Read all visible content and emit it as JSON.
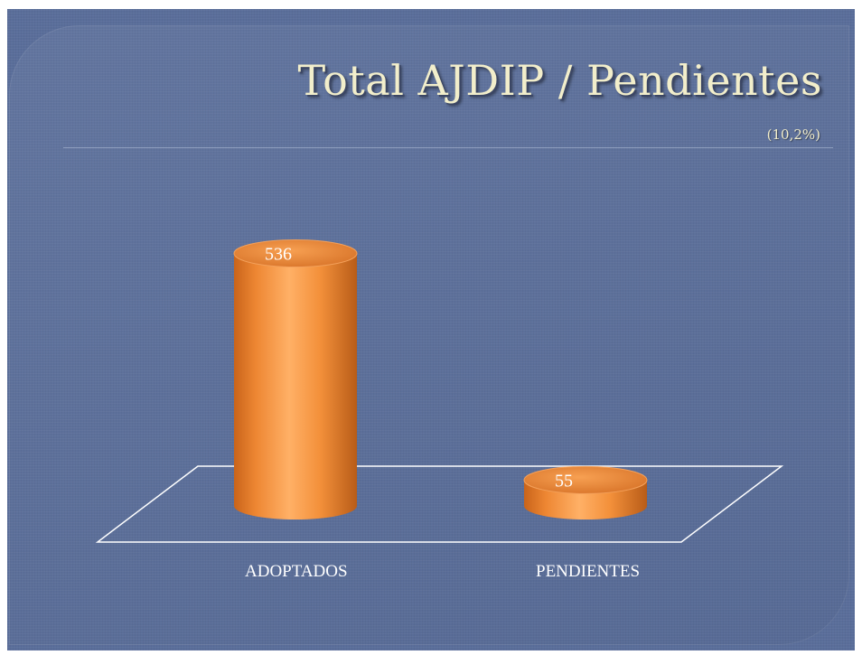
{
  "chart_data": {
    "type": "bar",
    "title": "Total AJDIP / Pendientes",
    "subtitle": "(10,2%)",
    "categories": [
      "ADOPTADOS",
      "PENDIENTES"
    ],
    "values": [
      536,
      55
    ],
    "data_labels": [
      "536",
      "55"
    ],
    "ylim": [
      0,
      560
    ],
    "bar_style": "3d-cylinder",
    "bar_color": "#f08a32",
    "grid": false,
    "legend": "none"
  },
  "theme": {
    "background": "#5a6e9a",
    "title_color": "#f2eecb"
  }
}
